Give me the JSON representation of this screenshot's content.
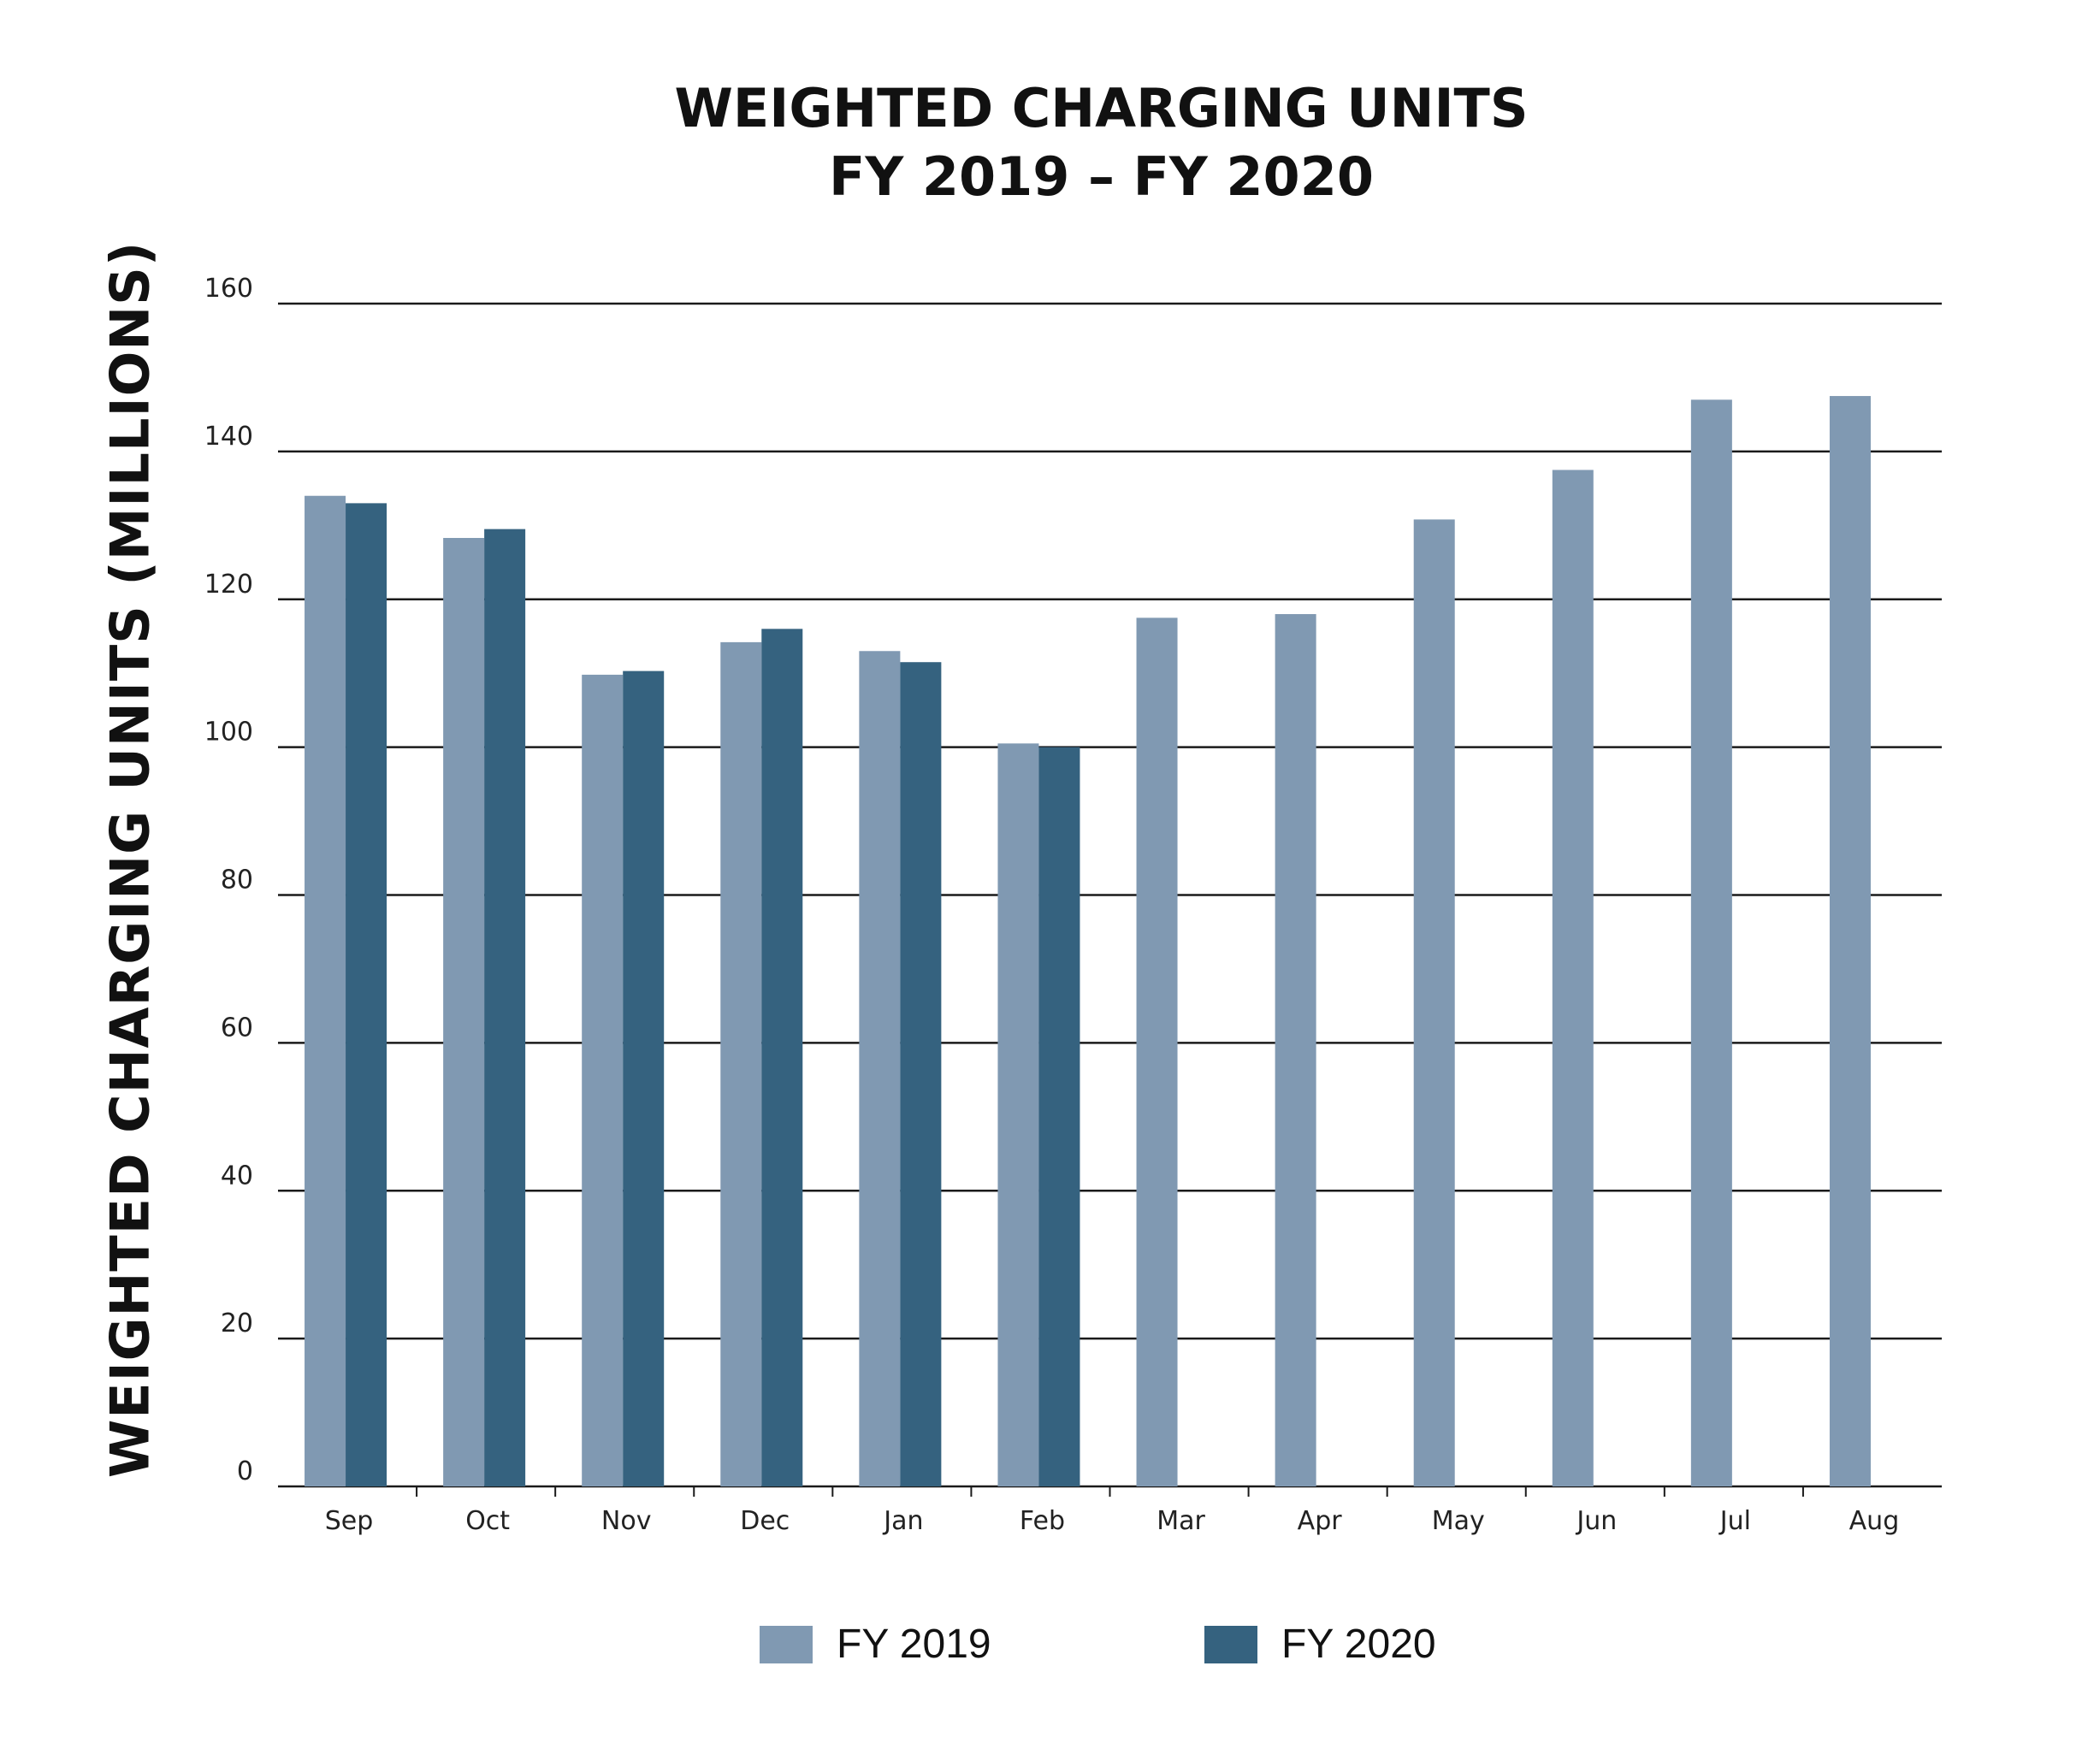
{
  "colors": {
    "fy2019": "#8099b2",
    "fy2020": "#35627f",
    "grid": "#1a1a1a"
  },
  "chart_data": {
    "type": "bar",
    "title": "WEIGHTED CHARGING UNITS",
    "subtitle": "FY 2019 – FY 2020",
    "xlabel": "",
    "ylabel": "WEIGHTED CHARGING UNITS (MILLIONS)",
    "ylim": [
      0,
      160
    ],
    "yticks": [
      "0",
      "20",
      "40",
      "60",
      "80",
      "100",
      "120",
      "140",
      "160"
    ],
    "grid": true,
    "legend_position": "bottom-center",
    "categories": [
      "Sep",
      "Oct",
      "Nov",
      "Dec",
      "Jan",
      "Feb",
      "Mar",
      "Apr",
      "May",
      "Jun",
      "Jul",
      "Aug"
    ],
    "series": [
      {
        "name": "FY 2019",
        "values": [
          134,
          128.3,
          109.8,
          114.2,
          113,
          100.5,
          117.5,
          118,
          130.8,
          137.5,
          147,
          147.5
        ]
      },
      {
        "name": "FY 2020",
        "values": [
          133,
          129.5,
          110.3,
          116,
          111.5,
          100,
          null,
          null,
          null,
          null,
          null,
          null
        ]
      }
    ]
  }
}
